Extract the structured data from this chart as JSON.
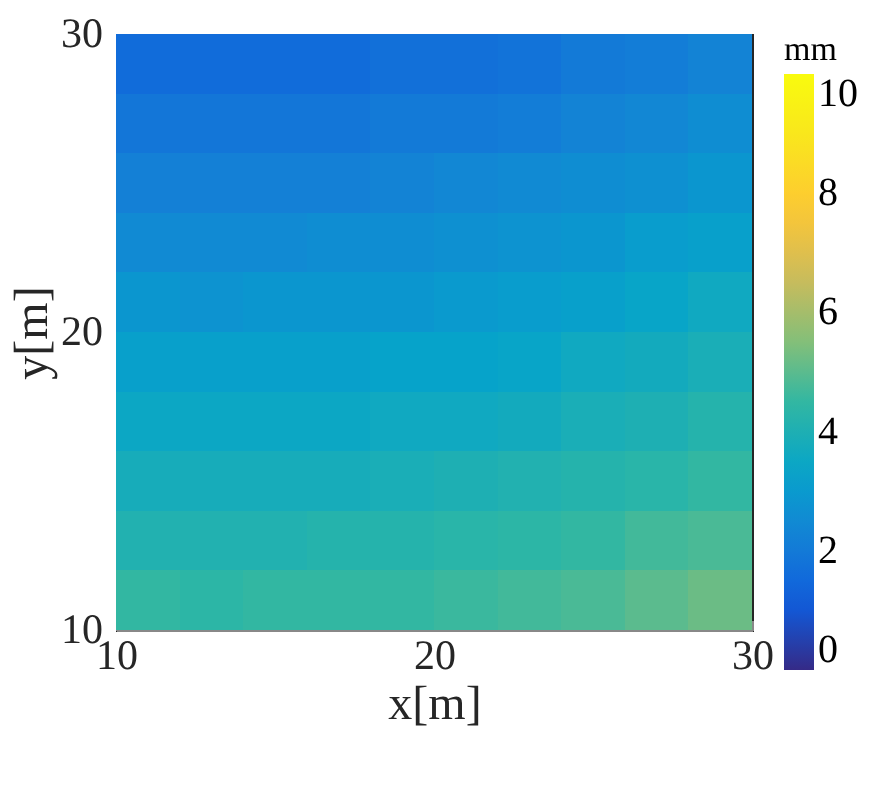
{
  "chart_data": {
    "type": "heatmap",
    "xlabel": "x[m]",
    "ylabel": "y[m]",
    "clabel": "mm",
    "x": [
      11,
      13,
      15,
      17,
      19,
      21,
      23,
      25,
      27,
      29
    ],
    "y": [
      29,
      27,
      25,
      23,
      21,
      19,
      17,
      15,
      13,
      11
    ],
    "cells": [
      [
        1.6,
        1.6,
        1.6,
        1.6,
        1.7,
        1.7,
        1.8,
        2.0,
        2.1,
        2.3
      ],
      [
        1.9,
        1.9,
        1.9,
        1.9,
        2.0,
        2.0,
        2.1,
        2.3,
        2.4,
        2.6
      ],
      [
        2.2,
        2.2,
        2.2,
        2.2,
        2.3,
        2.4,
        2.5,
        2.6,
        2.7,
        2.9
      ],
      [
        2.5,
        2.5,
        2.5,
        2.6,
        2.6,
        2.7,
        2.8,
        2.9,
        3.1,
        3.2
      ],
      [
        2.9,
        2.8,
        2.9,
        2.9,
        2.9,
        3.0,
        3.1,
        3.2,
        3.4,
        3.6
      ],
      [
        3.2,
        3.2,
        3.2,
        3.2,
        3.3,
        3.3,
        3.4,
        3.6,
        3.7,
        3.9
      ],
      [
        3.5,
        3.5,
        3.5,
        3.5,
        3.6,
        3.6,
        3.7,
        3.9,
        4.0,
        4.2
      ],
      [
        3.8,
        3.8,
        3.8,
        3.8,
        3.9,
        4.0,
        4.1,
        4.2,
        4.3,
        4.5
      ],
      [
        4.1,
        4.1,
        4.1,
        4.2,
        4.2,
        4.3,
        4.4,
        4.5,
        4.7,
        4.8
      ],
      [
        4.5,
        4.4,
        4.5,
        4.5,
        4.5,
        4.6,
        4.7,
        4.8,
        5.0,
        5.2
      ]
    ],
    "xlim": [
      10,
      30
    ],
    "ylim": [
      10,
      30
    ],
    "xticks": [
      10,
      20,
      30
    ],
    "yticks": [
      10,
      20,
      30
    ],
    "clim": [
      0,
      10
    ],
    "cticks": [
      0,
      2,
      4,
      6,
      8,
      10
    ]
  }
}
